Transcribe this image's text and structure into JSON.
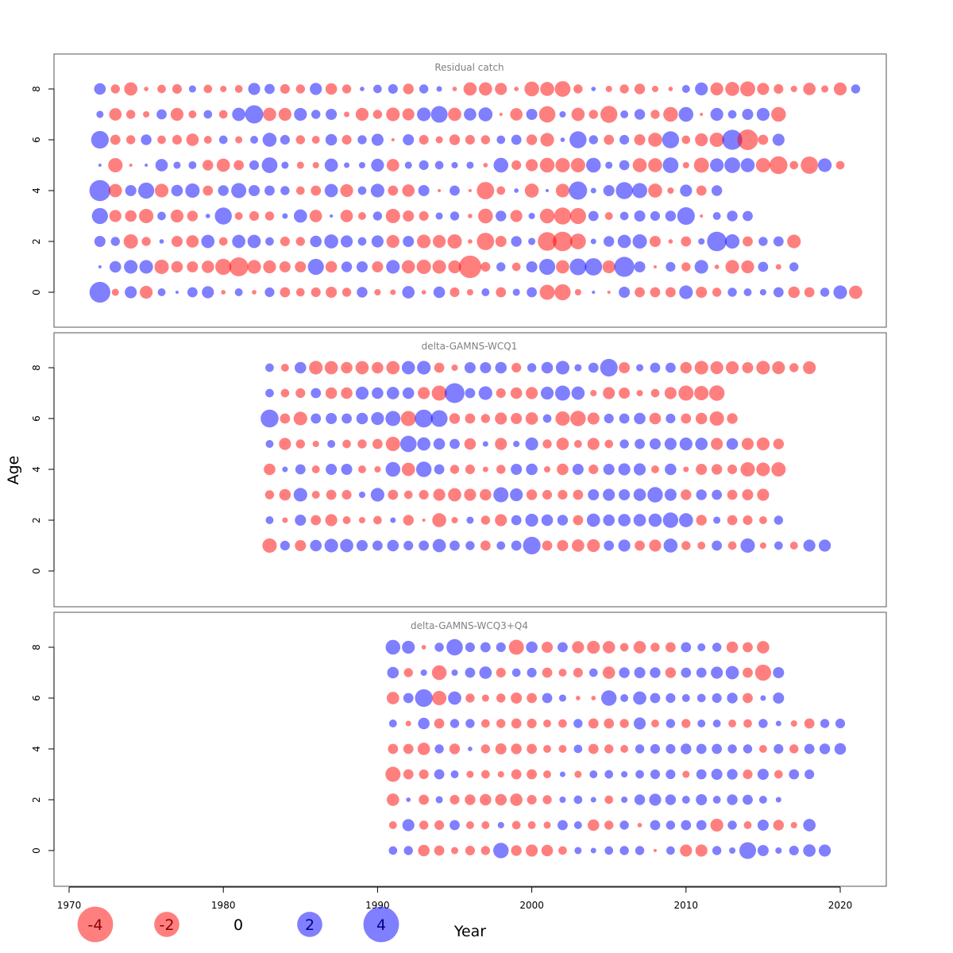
{
  "chart_data": {
    "type": "bubble",
    "xlabel": "Year",
    "ylabel": "Age",
    "xlim": [
      1969,
      2023
    ],
    "x_ticks": [
      1970,
      1980,
      1990,
      2000,
      2010,
      2020
    ],
    "y_ticks": [
      0,
      2,
      4,
      6,
      8
    ],
    "ylim": [
      -1.3,
      9.3
    ],
    "colors": {
      "positive": "#0000ff",
      "negative": "#ff0000",
      "alpha": 0.5
    },
    "legend": [
      {
        "value": -4,
        "label": "-4"
      },
      {
        "value": -2,
        "label": "-2"
      },
      {
        "value": 0,
        "label": "0"
      },
      {
        "value": 2,
        "label": "2"
      },
      {
        "value": 4,
        "label": "4"
      }
    ],
    "panels": [
      {
        "title": "Residual catch",
        "year_start": 1972,
        "ages": [
          0,
          1,
          2,
          3,
          4,
          5,
          6,
          7,
          8
        ],
        "residuals": [
          [
            4.2,
            -0.5,
            1.4,
            -1.6,
            0.6,
            0.1,
            1.0,
            1.4,
            -0.2,
            0.6,
            -0.2,
            0.9,
            -1.0,
            -0.7,
            -0.9,
            -1.2,
            -0.8,
            1.1,
            -0.4,
            -0.3,
            1.5,
            -0.2,
            1.3,
            -0.9,
            -0.4,
            0.6,
            -1.0,
            0.5,
            1.0,
            -2.2,
            -2.5,
            -0.4,
            0.1,
            -0.1,
            1.2,
            -1.0,
            -1.0,
            -1.0,
            1.8,
            -1.2,
            -0.8,
            0.8,
            0.6,
            0.4,
            1.0,
            -1.3,
            -1.0,
            0.8,
            1.8,
            -1.7
          ],
          [
            0.1,
            1.3,
            1.8,
            1.8,
            -2.0,
            -1.3,
            -1.2,
            -1.5,
            -2.5,
            -3.5,
            -1.8,
            -1.6,
            -1.2,
            -1.2,
            2.5,
            -1.3,
            1.1,
            1.2,
            -1.2,
            1.8,
            -1.7,
            -2.0,
            -1.8,
            -1.6,
            -4.9,
            -0.9,
            0.8,
            -0.7,
            1.2,
            2.5,
            -1.7,
            2.7,
            2.9,
            -1.6,
            3.9,
            1.2,
            -0.1,
            0.9,
            -0.8,
            1.8,
            -0.2,
            -1.8,
            -1.6,
            1.0,
            -0.3,
            0.8
          ],
          [
            1.2,
            0.8,
            -2.0,
            -0.8,
            0.2,
            -1.2,
            -1.5,
            1.7,
            -0.7,
            1.7,
            1.7,
            0.7,
            -0.9,
            -0.8,
            1.3,
            1.9,
            1.4,
            0.7,
            1.4,
            -1.6,
            1.2,
            -1.8,
            -1.6,
            -2.0,
            -0.2,
            -2.9,
            -1.2,
            1.1,
            0.5,
            -3.4,
            -3.7,
            -2.4,
            0.3,
            1.1,
            1.7,
            2.0,
            -1.2,
            -0.2,
            -1.0,
            0.4,
            3.7,
            2.0,
            -1.0,
            0.8,
            1.0,
            -1.8
          ],
          [
            2.5,
            -1.4,
            -1.3,
            -2.0,
            0.7,
            -1.6,
            -1.1,
            0.2,
            2.8,
            -0.6,
            -0.9,
            -0.8,
            0.3,
            1.7,
            -1.5,
            0.1,
            -1.5,
            -0.6,
            0.8,
            -2.0,
            -1.2,
            -0.9,
            0.5,
            0.8,
            -0.2,
            -2.1,
            1.1,
            -1.4,
            0.4,
            -2.1,
            -2.8,
            -2.5,
            1.0,
            -0.6,
            0.7,
            1.2,
            0.9,
            1.1,
            3.0,
            -0.1,
            0.6,
            1.1,
            1.0
          ],
          [
            4.3,
            -1.7,
            1.2,
            2.5,
            -1.8,
            1.3,
            2.0,
            -1.0,
            1.1,
            2.2,
            1.2,
            1.0,
            0.8,
            -0.7,
            -1.0,
            1.7,
            -1.6,
            0.7,
            1.8,
            -1.0,
            -1.5,
            1.2,
            -0.1,
            1.0,
            -0.1,
            -2.9,
            -0.7,
            0.2,
            -1.9,
            0.1,
            -1.8,
            3.2,
            0.3,
            1.2,
            2.8,
            2.2,
            -1.9,
            -0.4,
            1.4,
            -1.0,
            1.1
          ],
          [
            0.1,
            -2.0,
            -0.1,
            0.1,
            1.5,
            0.5,
            0.6,
            -1.1,
            -1.7,
            -1.0,
            0.9,
            2.4,
            0.5,
            -0.5,
            -0.4,
            1.7,
            0.3,
            0.4,
            1.6,
            -1.5,
            0.5,
            0.9,
            0.7,
            0.4,
            0.5,
            -0.2,
            2.1,
            -0.9,
            -1.4,
            -2.1,
            -2.0,
            -2.0,
            2.1,
            0.5,
            1.0,
            -1.9,
            -1.9,
            2.4,
            -0.4,
            -2.2,
            1.8,
            2.4,
            1.9,
            -2.0,
            -3.1,
            -0.7,
            -2.9,
            1.8,
            -0.7
          ],
          [
            3.0,
            -1.0,
            -0.8,
            1.1,
            -0.7,
            -0.9,
            -1.5,
            -0.6,
            0.7,
            -0.5,
            0.6,
            1.9,
            0.9,
            -0.8,
            -0.6,
            1.3,
            -0.9,
            0.8,
            1.4,
            -0.1,
            1.2,
            -0.9,
            -0.5,
            -1.1,
            -0.9,
            -0.8,
            0.7,
            1.0,
            -1.1,
            -1.8,
            0.2,
            2.8,
            0.8,
            -1.0,
            0.9,
            -1.2,
            -1.9,
            2.8,
            -0.7,
            -1.6,
            -2.0,
            3.9,
            -4.1,
            -1.0,
            1.4
          ],
          [
            0.5,
            -1.5,
            -0.8,
            -0.4,
            1.0,
            -1.6,
            -0.6,
            0.7,
            -0.7,
            1.7,
            3.2,
            -1.7,
            -1.6,
            1.6,
            0.8,
            1.2,
            -0.3,
            -1.6,
            -0.8,
            -1.8,
            -1.4,
            1.8,
            2.7,
            -1.7,
            1.5,
            1.9,
            -0.1,
            -1.5,
            1.2,
            -2.6,
            0.4,
            -1.7,
            -0.8,
            -2.8,
            0.6,
            1.1,
            -0.8,
            -2.1,
            2.1,
            -0.1,
            1.6,
            0.7,
            1.2,
            1.6,
            -2.1
          ],
          [
            1.3,
            -0.8,
            -1.7,
            -0.2,
            -0.7,
            -0.9,
            0.5,
            -0.7,
            -0.4,
            -0.6,
            1.4,
            1.0,
            -0.9,
            -0.8,
            1.4,
            -1.3,
            -0.8,
            0.2,
            0.7,
            0.9,
            -1.1,
            0.8,
            0.3,
            -0.2,
            -1.7,
            -1.7,
            -1.4,
            -0.2,
            -2.1,
            -1.9,
            -2.4,
            -0.8,
            0.2,
            -0.4,
            -0.8,
            -1.1,
            -0.4,
            -0.2,
            0.6,
            1.6,
            -1.6,
            -1.9,
            -2.2,
            -1.4,
            -0.9,
            -0.4,
            -1.5,
            -0.5,
            -1.6,
            0.8
          ]
        ]
      },
      {
        "title": "delta-GAMNS-WCQ1",
        "year_start": 1983,
        "ages": [
          1,
          2,
          3,
          4,
          5,
          6,
          7,
          8
        ],
        "residuals": [
          [
            -2.0,
            0.9,
            -1.2,
            1.3,
            1.8,
            1.7,
            1.2,
            1.0,
            1.3,
            0.9,
            1.0,
            1.7,
            1.0,
            0.8,
            -1.0,
            0.7,
            1.0,
            3.0,
            -1.0,
            -1.2,
            -1.5,
            -1.6,
            1.0,
            1.4,
            -1.0,
            -1.4,
            1.9,
            -0.8,
            -0.6,
            1.0,
            -0.7,
            2.0,
            -0.4,
            0.7,
            -0.6,
            1.4,
            1.4
          ],
          [
            0.6,
            -0.3,
            1.2,
            -1.0,
            -1.4,
            -0.6,
            -0.4,
            -0.7,
            0.3,
            -1.1,
            -0.1,
            -1.9,
            -0.4,
            0.5,
            -0.8,
            -1.4,
            1.0,
            1.6,
            1.3,
            1.1,
            -1.0,
            1.7,
            1.3,
            1.5,
            1.5,
            1.7,
            2.3,
            1.9,
            -1.1,
            0.5,
            -1.0,
            -0.9,
            -0.6,
            0.8
          ],
          [
            -0.8,
            -1.3,
            1.8,
            -0.6,
            -1.0,
            -0.9,
            0.4,
            1.8,
            -1.0,
            -0.7,
            -0.9,
            -1.4,
            -1.7,
            -1.4,
            -1.3,
            2.2,
            1.6,
            -1.1,
            -0.9,
            -0.9,
            -1.0,
            1.2,
            1.4,
            1.2,
            1.5,
            2.3,
            1.4,
            -1.1,
            1.1,
            1.0,
            -1.0,
            -1.2,
            -1.4
          ],
          [
            -1.3,
            0.3,
            1.0,
            -0.6,
            1.2,
            1.2,
            -0.6,
            -0.4,
            2.1,
            -1.7,
            2.3,
            1.0,
            -0.8,
            -0.9,
            -0.3,
            -0.8,
            1.2,
            1.3,
            -0.4,
            -1.3,
            1.2,
            -0.9,
            1.2,
            1.4,
            1.4,
            -0.6,
            1.3,
            -0.3,
            -1.2,
            -1.1,
            -0.9,
            -2.0,
            -1.8,
            -2.0
          ],
          [
            0.6,
            -1.4,
            -0.8,
            -0.4,
            0.6,
            -0.7,
            -0.8,
            -1.0,
            -2.0,
            2.6,
            1.7,
            1.3,
            1.0,
            -1.3,
            0.3,
            -1.4,
            0.4,
            1.6,
            -0.8,
            -1.5,
            -0.6,
            -1.4,
            -0.7,
            0.8,
            1.0,
            1.2,
            1.4,
            1.6,
            1.5,
            -1.4,
            1.3,
            -1.4,
            -1.6,
            -1.1
          ],
          [
            3.1,
            -1.0,
            -1.8,
            1.0,
            1.2,
            1.0,
            1.3,
            1.6,
            2.2,
            -2.2,
            3.1,
            2.7,
            -1.1,
            -1.0,
            -0.8,
            -1.4,
            -1.2,
            -1.5,
            0.7,
            -2.0,
            -2.3,
            -1.4,
            0.9,
            1.0,
            1.3,
            -1.3,
            0.9,
            -1.0,
            -1.3,
            -2.0,
            -1.1
          ],
          [
            0.7,
            -0.7,
            -0.9,
            1.0,
            -1.3,
            -1.3,
            1.6,
            1.3,
            1.5,
            1.3,
            -1.4,
            -2.2,
            3.8,
            1.0,
            1.8,
            -0.9,
            -1.3,
            -1.4,
            1.6,
            2.2,
            1.7,
            -0.4,
            -1.4,
            -1.2,
            -0.4,
            -0.7,
            -1.4,
            -2.2,
            -2.0,
            -2.3
          ],
          [
            0.7,
            -0.6,
            1.3,
            -1.8,
            -1.7,
            -1.3,
            -1.7,
            -1.3,
            -1.7,
            1.7,
            1.8,
            -1.0,
            -0.4,
            1.2,
            1.2,
            1.3,
            -0.9,
            0.8,
            1.3,
            1.8,
            0.5,
            1.0,
            3.0,
            -1.2,
            0.5,
            1.0,
            1.0,
            -1.3,
            -1.8,
            -1.6,
            -1.6,
            -1.2,
            -1.8,
            -1.6,
            -0.8,
            -1.6
          ]
        ]
      },
      {
        "title": "delta-GAMNS-WCQ3+Q4",
        "year_start": 1991,
        "ages": [
          0,
          1,
          2,
          3,
          4,
          5,
          6,
          7,
          8
        ],
        "residuals": [
          [
            0.7,
            0.8,
            -1.3,
            -1.0,
            -0.5,
            -0.9,
            -0.8,
            2.3,
            -1.1,
            -1.4,
            -1.3,
            -0.7,
            0.5,
            0.3,
            0.7,
            0.8,
            0.8,
            -0.1,
            0.7,
            -1.4,
            -1.4,
            0.8,
            0.4,
            2.7,
            1.2,
            0.4,
            0.9,
            1.5,
            1.4
          ],
          [
            -0.6,
            1.4,
            -0.8,
            -0.9,
            1.0,
            -0.6,
            -0.6,
            0.4,
            -0.7,
            -0.6,
            -0.5,
            1.0,
            0.6,
            -1.3,
            -0.8,
            0.8,
            -0.2,
            1.0,
            0.8,
            1.0,
            1.0,
            -1.6,
            0.8,
            -0.6,
            1.2,
            -1.1,
            -0.4,
            1.5
          ],
          [
            -1.5,
            0.2,
            -1.0,
            0.5,
            -0.9,
            -1.1,
            -1.3,
            -1.3,
            -1.5,
            -0.9,
            -0.8,
            0.4,
            0.7,
            0.3,
            -0.7,
            0.4,
            1.1,
            1.4,
            1.1,
            0.6,
            1.2,
            0.6,
            1.1,
            1.0,
            0.6,
            0.3
          ],
          [
            -2.2,
            -1.0,
            -0.9,
            1.0,
            0.6,
            -0.5,
            -0.7,
            -0.4,
            -1.0,
            -1.0,
            -0.6,
            0.3,
            -0.5,
            0.6,
            0.7,
            0.4,
            0.7,
            0.9,
            0.9,
            -0.5,
            1.0,
            1.2,
            1.1,
            -0.9,
            1.2,
            -0.7,
            1.0,
            0.9
          ],
          [
            -1.0,
            -1.0,
            -1.5,
            0.8,
            -1.1,
            0.2,
            -0.8,
            -1.2,
            -1.1,
            -1.0,
            -0.6,
            -0.6,
            0.7,
            -1.0,
            -0.8,
            -0.6,
            0.8,
            0.9,
            0.9,
            1.1,
            1.0,
            1.0,
            0.8,
            0.8,
            -0.6,
            0.9,
            -0.8,
            1.0,
            1.1,
            1.3
          ],
          [
            0.6,
            -0.3,
            1.3,
            -1.0,
            0.8,
            0.8,
            -0.7,
            -0.8,
            -1.0,
            -0.9,
            -0.6,
            -0.7,
            0.8,
            -1.0,
            -1.0,
            -0.8,
            1.4,
            -0.6,
            0.8,
            -0.8,
            0.6,
            0.6,
            -0.6,
            -0.7,
            0.8,
            0.3,
            -0.4,
            -1.0,
            0.8,
            0.9
          ],
          [
            -1.5,
            1.0,
            3.0,
            -2.0,
            1.7,
            -0.8,
            -0.5,
            -0.8,
            -1.2,
            -1.0,
            1.0,
            0.5,
            -0.2,
            -0.2,
            2.3,
            0.6,
            1.7,
            1.0,
            0.9,
            0.6,
            0.7,
            0.9,
            1.1,
            -1.0,
            0.3,
            1.2
          ],
          [
            1.3,
            -0.8,
            0.4,
            -2.1,
            0.4,
            1.0,
            1.5,
            -0.9,
            0.7,
            0.9,
            -1.0,
            -0.6,
            -0.9,
            0.7,
            -1.5,
            1.1,
            1.2,
            1.1,
            -1.1,
            1.0,
            1.0,
            1.4,
            1.7,
            -1.0,
            -2.5,
            1.2
          ],
          [
            2.1,
            1.6,
            -0.2,
            0.8,
            2.6,
            0.9,
            1.0,
            0.9,
            -2.2,
            1.3,
            -1.2,
            1.0,
            -1.4,
            -1.6,
            -1.5,
            -0.7,
            -1.5,
            -0.8,
            -1.0,
            1.0,
            0.6,
            0.8,
            -1.3,
            -1.0,
            -1.5
          ]
        ]
      }
    ]
  }
}
